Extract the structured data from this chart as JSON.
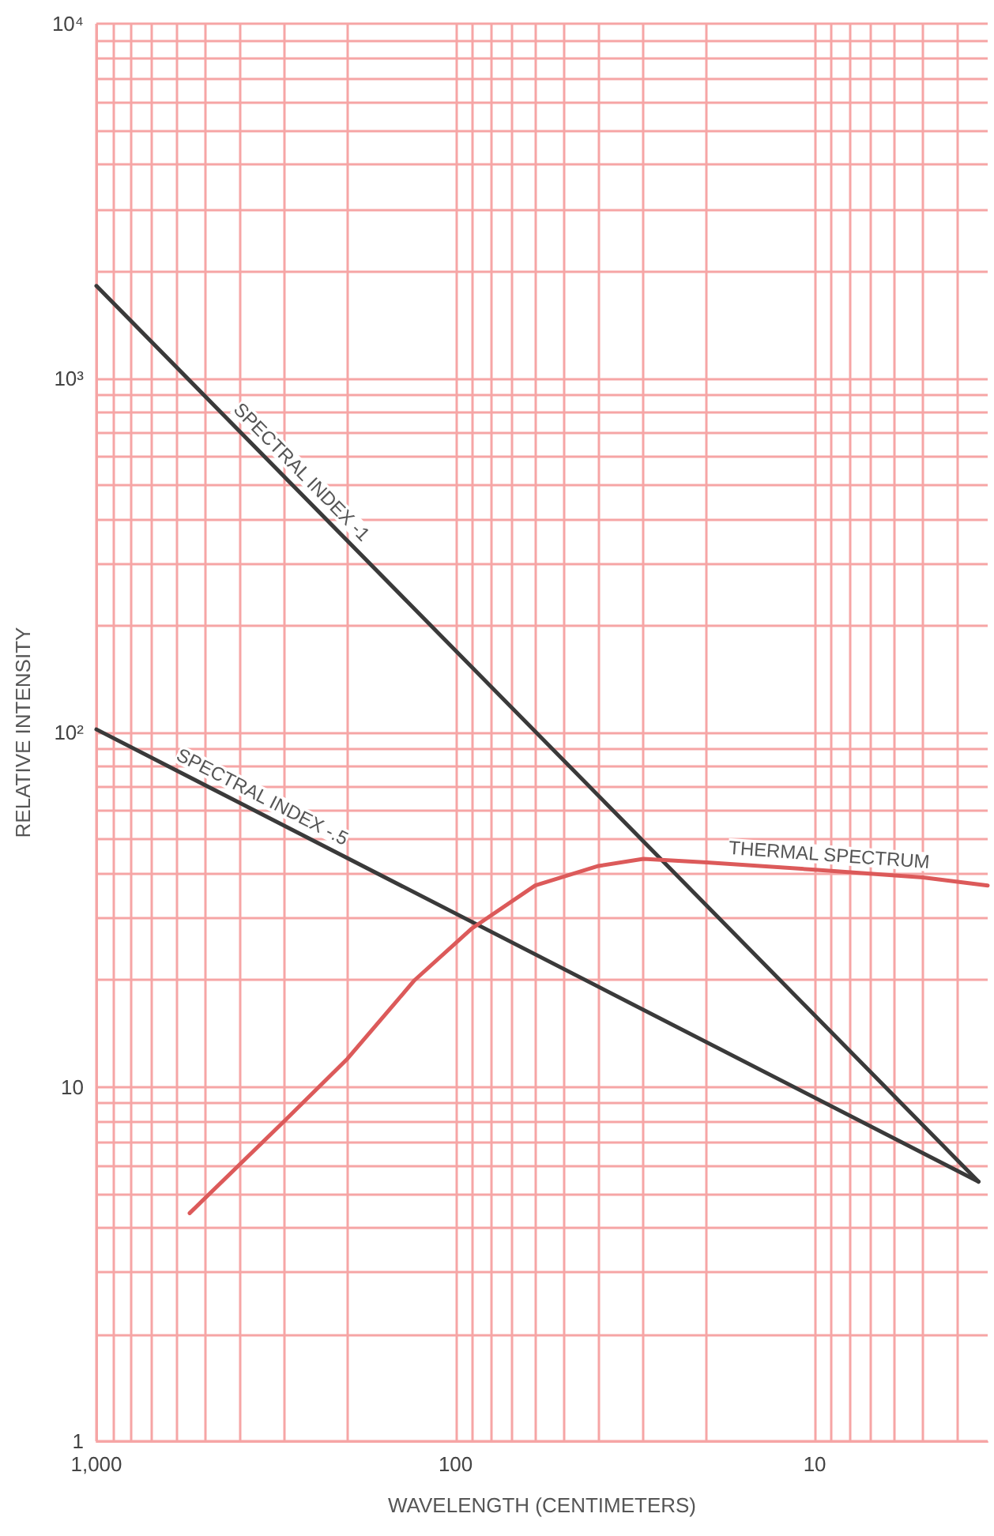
{
  "chart_data": {
    "type": "line",
    "xlabel": "WAVELENGTH (CENTIMETERS)",
    "ylabel": "RELATIVE INTENSITY",
    "log": "xy",
    "grid": true,
    "legend": false,
    "marker": "none",
    "xlim": [
      1000,
      3.3
    ],
    "xticks": [
      {
        "value": 1000,
        "label": "1,000"
      },
      {
        "value": 900,
        "label": null
      },
      {
        "value": 800,
        "label": null
      },
      {
        "value": 700,
        "label": null
      },
      {
        "value": 600,
        "label": null
      },
      {
        "value": 500,
        "label": null
      },
      {
        "value": 400,
        "label": null
      },
      {
        "value": 300,
        "label": null
      },
      {
        "value": 200,
        "label": null
      },
      100,
      {
        "value": 90,
        "label": null
      },
      {
        "value": 80,
        "label": null
      },
      {
        "value": 70,
        "label": null
      },
      {
        "value": 60,
        "label": null
      },
      {
        "value": 50,
        "label": null
      },
      {
        "value": 40,
        "label": null
      },
      {
        "value": 30,
        "label": null
      },
      {
        "value": 20,
        "label": null
      },
      10,
      {
        "value": 9,
        "label": null
      },
      {
        "value": 8,
        "label": null
      },
      {
        "value": 7,
        "label": null
      },
      {
        "value": 6,
        "label": null
      },
      {
        "value": 5,
        "label": null
      },
      {
        "value": 4,
        "label": null
      }
    ],
    "ylim": [
      1,
      10000
    ],
    "yticks": [
      1,
      {
        "value": 2,
        "label": null
      },
      {
        "value": 3,
        "label": null
      },
      {
        "value": 4,
        "label": null
      },
      {
        "value": 5,
        "label": null
      },
      {
        "value": 6,
        "label": null
      },
      {
        "value": 7,
        "label": null
      },
      {
        "value": 8,
        "label": null
      },
      {
        "value": 9,
        "label": null
      },
      10,
      {
        "value": 20,
        "label": null
      },
      {
        "value": 30,
        "label": null
      },
      {
        "value": 40,
        "label": null
      },
      {
        "value": 50,
        "label": null
      },
      {
        "value": 60,
        "label": null
      },
      {
        "value": 70,
        "label": null
      },
      {
        "value": 80,
        "label": null
      },
      {
        "value": 90,
        "label": null
      },
      {
        "value": 100,
        "label": "10²"
      },
      {
        "value": 200,
        "label": null
      },
      {
        "value": 300,
        "label": null
      },
      {
        "value": 400,
        "label": null
      },
      {
        "value": 500,
        "label": null
      },
      {
        "value": 600,
        "label": null
      },
      {
        "value": 700,
        "label": null
      },
      {
        "value": 800,
        "label": null
      },
      {
        "value": 900,
        "label": null
      },
      {
        "value": 1000,
        "label": "10³"
      },
      {
        "value": 2000,
        "label": null
      },
      {
        "value": 3000,
        "label": null
      },
      {
        "value": 4000,
        "label": null
      },
      {
        "value": 5000,
        "label": null
      },
      {
        "value": 6000,
        "label": null
      },
      {
        "value": 7000,
        "label": null
      },
      {
        "value": 8000,
        "label": null
      },
      {
        "value": 9000,
        "label": null
      },
      {
        "value": 10000,
        "label": "10⁴"
      }
    ],
    "series": [
      {
        "name": "SPECTRAL INDEX -1",
        "color": "#3a3a3a",
        "x": [
          1000,
          3.5
        ],
        "values": [
          1820,
          5.4
        ]
      },
      {
        "name": "SPECTRAL INDEX -.5",
        "color": "#3a3a3a",
        "x": [
          1000,
          3.5
        ],
        "values": [
          102,
          5.4
        ]
      },
      {
        "name": "THERMAL SPECTRUM",
        "color": "#dc5a5a",
        "x": [
          550,
          300,
          200,
          130,
          90,
          60,
          40,
          30,
          20,
          10,
          5,
          3.3
        ],
        "values": [
          4.4,
          8,
          12,
          20,
          28,
          37,
          42,
          44,
          43,
          41,
          39,
          37
        ]
      }
    ]
  }
}
